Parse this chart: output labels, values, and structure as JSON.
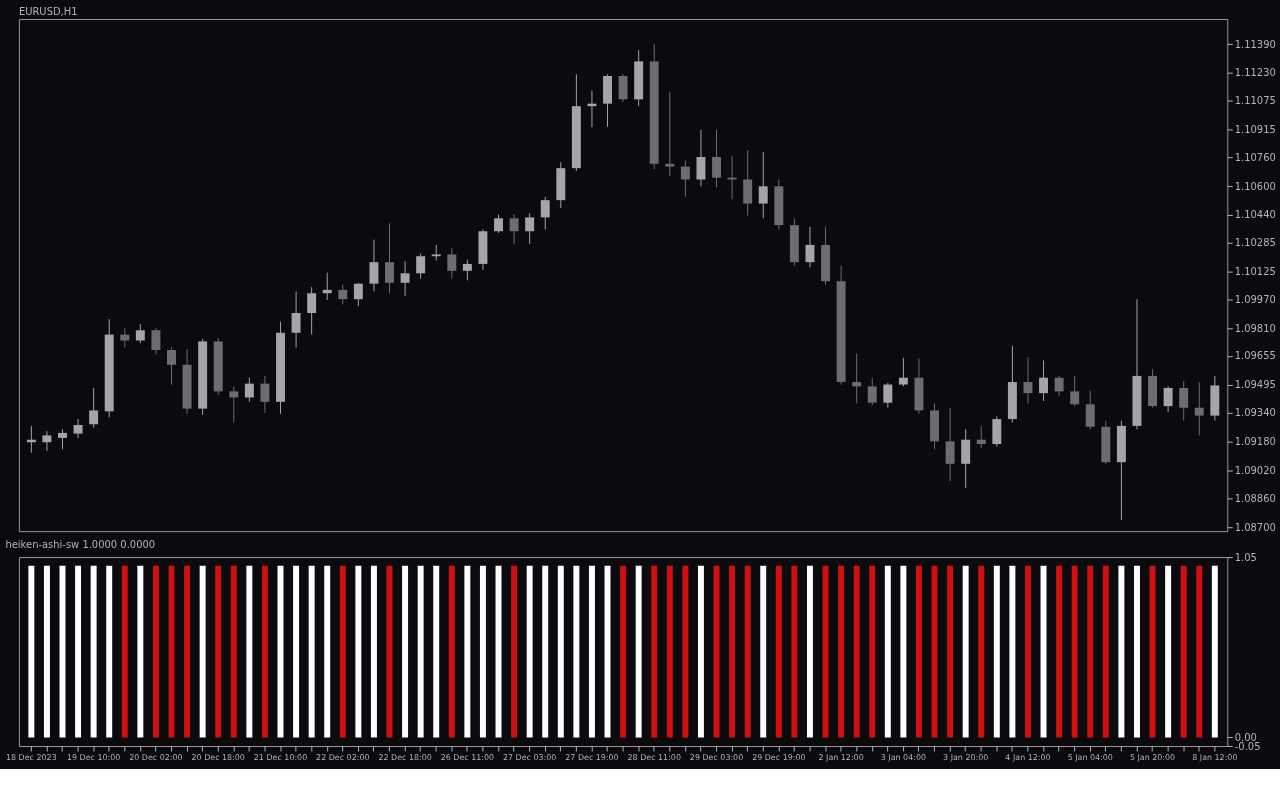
{
  "chart_data": [
    {
      "type": "candlestick",
      "title": "EURUSD,H1",
      "ohlc": [
        [
          1.09175,
          1.09266,
          1.09117,
          1.09189
        ],
        [
          1.09175,
          1.09237,
          1.09127,
          1.09213
        ],
        [
          1.09199,
          1.09247,
          1.09136,
          1.09227
        ],
        [
          1.09223,
          1.09304,
          1.09199,
          1.09271
        ],
        [
          1.09275,
          1.09477,
          1.09256,
          1.09352
        ],
        [
          1.09347,
          1.0986,
          1.09314,
          1.09774
        ],
        [
          1.09774,
          1.09812,
          1.09702,
          1.09741
        ],
        [
          1.09741,
          1.09832,
          1.09726,
          1.09798
        ],
        [
          1.09798,
          1.09812,
          1.09664,
          1.09688
        ],
        [
          1.09688,
          1.09702,
          1.09496,
          1.09606
        ],
        [
          1.09606,
          1.09693,
          1.09333,
          1.09362
        ],
        [
          1.09362,
          1.0975,
          1.09328,
          1.09736
        ],
        [
          1.09736,
          1.09755,
          1.09438,
          1.09458
        ],
        [
          1.09458,
          1.09486,
          1.09285,
          1.09424
        ],
        [
          1.09424,
          1.09534,
          1.094,
          1.09501
        ],
        [
          1.09501,
          1.09544,
          1.09338,
          1.094
        ],
        [
          1.094,
          1.09846,
          1.09333,
          1.09784
        ],
        [
          1.09784,
          1.10014,
          1.09702,
          1.09894
        ],
        [
          1.09894,
          1.10038,
          1.09774,
          1.10004
        ],
        [
          1.10004,
          1.10119,
          1.09966,
          1.10023
        ],
        [
          1.10023,
          1.10052,
          1.09942,
          1.09971
        ],
        [
          1.09971,
          1.10062,
          1.09932,
          1.10057
        ],
        [
          1.10057,
          1.10302,
          1.10014,
          1.10177
        ],
        [
          1.10177,
          1.10393,
          1.10004,
          1.10062
        ],
        [
          1.10062,
          1.10182,
          1.0999,
          1.10115
        ],
        [
          1.10115,
          1.10225,
          1.10086,
          1.1021
        ],
        [
          1.1021,
          1.10273,
          1.10186,
          1.1022
        ],
        [
          1.1022,
          1.10255,
          1.10086,
          1.10129
        ],
        [
          1.10129,
          1.10191,
          1.10076,
          1.10167
        ],
        [
          1.10167,
          1.10359,
          1.10134,
          1.10349
        ],
        [
          1.10349,
          1.10441,
          1.1034,
          1.10421
        ],
        [
          1.10421,
          1.10445,
          1.10278,
          1.10349
        ],
        [
          1.10349,
          1.1045,
          1.10278,
          1.10426
        ],
        [
          1.10426,
          1.10541,
          1.10359,
          1.10522
        ],
        [
          1.10522,
          1.10733,
          1.10478,
          1.107
        ],
        [
          1.107,
          1.11222,
          1.10685,
          1.11045
        ],
        [
          1.11045,
          1.11131,
          1.10928,
          1.11059
        ],
        [
          1.11059,
          1.11222,
          1.1093,
          1.11213
        ],
        [
          1.11213,
          1.11222,
          1.11069,
          1.11083
        ],
        [
          1.11083,
          1.11356,
          1.11045,
          1.11294
        ],
        [
          1.11294,
          1.1139,
          1.10695,
          1.10724
        ],
        [
          1.10724,
          1.11126,
          1.10656,
          1.10709
        ],
        [
          1.10709,
          1.10743,
          1.10541,
          1.10637
        ],
        [
          1.10637,
          1.10914,
          1.10599,
          1.10762
        ],
        [
          1.10762,
          1.10914,
          1.10594,
          1.10647
        ],
        [
          1.10647,
          1.10767,
          1.10527,
          1.10637
        ],
        [
          1.10637,
          1.108,
          1.10436,
          1.10503
        ],
        [
          1.10503,
          1.10791,
          1.10421,
          1.10599
        ],
        [
          1.10599,
          1.10637,
          1.10359,
          1.10383
        ],
        [
          1.10383,
          1.10421,
          1.10158,
          1.10177
        ],
        [
          1.10177,
          1.10374,
          1.10148,
          1.10273
        ],
        [
          1.10273,
          1.10374,
          1.10052,
          1.10071
        ],
        [
          1.10071,
          1.10158,
          1.09496,
          1.0951
        ],
        [
          1.0951,
          1.09669,
          1.09391,
          1.09486
        ],
        [
          1.09486,
          1.09534,
          1.09381,
          1.09395
        ],
        [
          1.09395,
          1.09505,
          1.09367,
          1.09496
        ],
        [
          1.09496,
          1.09645,
          1.09486,
          1.09534
        ],
        [
          1.09534,
          1.0964,
          1.09333,
          1.09352
        ],
        [
          1.09352,
          1.09391,
          1.09136,
          1.0918
        ],
        [
          1.0918,
          1.09367,
          1.08959,
          1.09055
        ],
        [
          1.09055,
          1.09247,
          1.08921,
          1.09189
        ],
        [
          1.09189,
          1.09266,
          1.09141,
          1.09165
        ],
        [
          1.09165,
          1.09319,
          1.09151,
          1.09304
        ],
        [
          1.09304,
          1.09712,
          1.09285,
          1.0951
        ],
        [
          1.0951,
          1.09649,
          1.09391,
          1.09448
        ],
        [
          1.09448,
          1.0963,
          1.09405,
          1.09534
        ],
        [
          1.09534,
          1.09544,
          1.09434,
          1.09458
        ],
        [
          1.09458,
          1.09544,
          1.09376,
          1.09386
        ],
        [
          1.09386,
          1.09462,
          1.09247,
          1.09261
        ],
        [
          1.09261,
          1.09295,
          1.09055,
          1.09064
        ],
        [
          1.09064,
          1.09295,
          1.08743,
          1.09266
        ],
        [
          1.09266,
          1.09971,
          1.09247,
          1.09544
        ],
        [
          1.09544,
          1.09582,
          1.09367,
          1.09376
        ],
        [
          1.09376,
          1.09486,
          1.09343,
          1.09477
        ],
        [
          1.09477,
          1.09515,
          1.09295,
          1.09367
        ],
        [
          1.09367,
          1.0951,
          1.09213,
          1.09323
        ],
        [
          1.09323,
          1.09544,
          1.09295,
          1.09491
        ]
      ],
      "colors": [
        "#a4a4ac",
        "#a4a4ac",
        "#a4a4ac",
        "#a4a4ac",
        "#a4a4ac",
        "#a4a4ac",
        "#6c6c74",
        "#a4a4ac",
        "#6c6c74",
        "#6c6c74",
        "#6c6c74",
        "#a4a4ac",
        "#6c6c74",
        "#6c6c74",
        "#a4a4ac",
        "#6c6c74",
        "#a4a4ac",
        "#a4a4ac",
        "#a4a4ac",
        "#a4a4ac",
        "#6c6c74",
        "#a4a4ac",
        "#a4a4ac",
        "#6c6c74",
        "#a4a4ac",
        "#a4a4ac",
        "#a4a4ac",
        "#6c6c74",
        "#a4a4ac",
        "#a4a4ac",
        "#a4a4ac",
        "#6c6c74",
        "#a4a4ac",
        "#a4a4ac",
        "#a4a4ac",
        "#a4a4ac",
        "#a4a4ac",
        "#a4a4ac",
        "#6c6c74",
        "#a4a4ac",
        "#6c6c74",
        "#6c6c74",
        "#6c6c74",
        "#a4a4ac",
        "#6c6c74",
        "#6c6c74",
        "#6c6c74",
        "#a4a4ac",
        "#6c6c74",
        "#6c6c74",
        "#a4a4ac",
        "#6c6c74",
        "#6c6c74",
        "#6c6c74",
        "#6c6c74",
        "#a4a4ac",
        "#a4a4ac",
        "#6c6c74",
        "#6c6c74",
        "#6c6c74",
        "#a4a4ac",
        "#6c6c74",
        "#a4a4ac",
        "#a4a4ac",
        "#6c6c74",
        "#a4a4ac",
        "#6c6c74",
        "#6c6c74",
        "#6c6c74",
        "#6c6c74",
        "#a4a4ac",
        "#a4a4ac",
        "#6c6c74",
        "#a4a4ac",
        "#6c6c74",
        "#6c6c74",
        "#a4a4ac"
      ],
      "ylim": [
        1.0868,
        1.1153
      ],
      "yticks": [
        {
          "value": 1.1139,
          "label": "1.11390"
        },
        {
          "value": 1.1123,
          "label": "1.11230"
        },
        {
          "value": 1.11075,
          "label": "1.11075"
        },
        {
          "value": 1.10915,
          "label": "1.10915"
        },
        {
          "value": 1.1076,
          "label": "1.10760"
        },
        {
          "value": 1.106,
          "label": "1.10600"
        },
        {
          "value": 1.1044,
          "label": "1.10440"
        },
        {
          "value": 1.10285,
          "label": "1.10285"
        },
        {
          "value": 1.10125,
          "label": "1.10125"
        },
        {
          "value": 1.0997,
          "label": "1.09970"
        },
        {
          "value": 1.0981,
          "label": "1.09810"
        },
        {
          "value": 1.09655,
          "label": "1.09655"
        },
        {
          "value": 1.09495,
          "label": "1.09495"
        },
        {
          "value": 1.0934,
          "label": "1.09340"
        },
        {
          "value": 1.0918,
          "label": "1.09180"
        },
        {
          "value": 1.0902,
          "label": "1.09020"
        },
        {
          "value": 1.0886,
          "label": "1.08860"
        },
        {
          "value": 1.087,
          "label": "1.08700"
        }
      ],
      "tick_labels": "y"
    },
    {
      "type": "bar",
      "title": "heiken-ashi-sw 1.0000 0.0000",
      "categories": [
        "18 Dec 2023",
        null,
        null,
        null,
        "19 Dec 10:00",
        null,
        null,
        null,
        "20 Dec 02:00",
        null,
        null,
        null,
        "20 Dec 18:00",
        null,
        null,
        null,
        "21 Dec 10:00",
        null,
        null,
        null,
        "22 Dec 02:00",
        null,
        null,
        null,
        "22 Dec 18:00",
        null,
        null,
        null,
        "26 Dec 11:00",
        null,
        null,
        null,
        "27 Dec 03:00",
        null,
        null,
        null,
        "27 Dec 19:00",
        null,
        null,
        null,
        "28 Dec 11:00",
        null,
        null,
        null,
        "29 Dec 03:00",
        null,
        null,
        null,
        "29 Dec 19:00",
        null,
        null,
        null,
        "2 Jan 12:00",
        null,
        null,
        null,
        "3 Jan 04:00",
        null,
        null,
        null,
        "3 Jan 20:00",
        null,
        null,
        null,
        "4 Jan 12:00",
        null,
        null,
        null,
        "5 Jan 04:00",
        null,
        null,
        null,
        "5 Jan 20:00",
        null,
        null,
        null,
        "8 Jan 12:00"
      ],
      "values": [
        1,
        1,
        1,
        1,
        1,
        1,
        1,
        1,
        1,
        1,
        1,
        1,
        1,
        1,
        1,
        1,
        1,
        1,
        1,
        1,
        1,
        1,
        1,
        1,
        1,
        1,
        1,
        1,
        1,
        1,
        1,
        1,
        1,
        1,
        1,
        1,
        1,
        1,
        1,
        1,
        1,
        1,
        1,
        1,
        1,
        1,
        1,
        1,
        1,
        1,
        1,
        1,
        1,
        1,
        1,
        1,
        1,
        1,
        1,
        1,
        1,
        1,
        1,
        1,
        1,
        1,
        1,
        1,
        1,
        1,
        1,
        1,
        1,
        1,
        1,
        1,
        1
      ],
      "colors": [
        "#ffffff",
        "#ffffff",
        "#ffffff",
        "#ffffff",
        "#ffffff",
        "#ffffff",
        "#d01010",
        "#ffffff",
        "#d01010",
        "#d01010",
        "#d01010",
        "#ffffff",
        "#d01010",
        "#d01010",
        "#ffffff",
        "#d01010",
        "#ffffff",
        "#ffffff",
        "#ffffff",
        "#ffffff",
        "#d01010",
        "#ffffff",
        "#ffffff",
        "#d01010",
        "#ffffff",
        "#ffffff",
        "#ffffff",
        "#d01010",
        "#ffffff",
        "#ffffff",
        "#ffffff",
        "#d01010",
        "#ffffff",
        "#ffffff",
        "#ffffff",
        "#ffffff",
        "#ffffff",
        "#ffffff",
        "#d01010",
        "#ffffff",
        "#d01010",
        "#d01010",
        "#d01010",
        "#ffffff",
        "#d01010",
        "#d01010",
        "#d01010",
        "#ffffff",
        "#d01010",
        "#d01010",
        "#ffffff",
        "#d01010",
        "#d01010",
        "#d01010",
        "#d01010",
        "#ffffff",
        "#ffffff",
        "#d01010",
        "#d01010",
        "#d01010",
        "#ffffff",
        "#d01010",
        "#ffffff",
        "#ffffff",
        "#d01010",
        "#ffffff",
        "#d01010",
        "#d01010",
        "#d01010",
        "#d01010",
        "#ffffff",
        "#ffffff",
        "#d01010",
        "#ffffff",
        "#d01010",
        "#d01010",
        "#ffffff"
      ],
      "ylim": [
        -0.05,
        1.05
      ],
      "yticks": [
        1.05,
        {
          "value": 0,
          "label": "0.00"
        },
        -0.05
      ]
    }
  ]
}
